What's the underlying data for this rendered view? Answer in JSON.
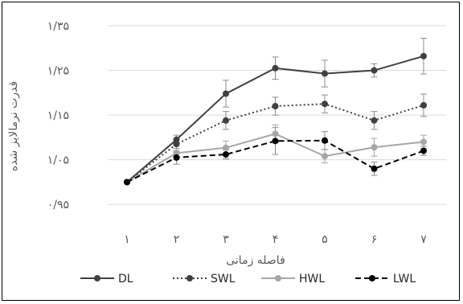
{
  "chart_data": {
    "type": "line",
    "title": "",
    "xlabel": "فاصله زمانی",
    "ylabel": "قدرت نرمالایز شده",
    "categories": [
      "۱",
      "۲",
      "۳",
      "۴",
      "۵",
      "۶",
      "۷"
    ],
    "x": [
      1,
      2,
      3,
      4,
      5,
      6,
      7
    ],
    "ylim": [
      0.9,
      1.35
    ],
    "yticks": [
      0.95,
      1.05,
      1.15,
      1.25,
      1.35
    ],
    "ytick_labels": [
      "۰/۹۵",
      "۱/۰۵",
      "۱/۱۵",
      "۱/۲۵",
      "۱/۳۵"
    ],
    "grid": true,
    "legend": "bottom",
    "series": [
      {
        "name": "DL",
        "color": "#404040",
        "dash": "solid",
        "values": [
          1.0,
          1.095,
          1.198,
          1.255,
          1.243,
          1.25,
          1.282
        ],
        "errors": [
          0,
          0.01,
          0.03,
          0.025,
          0.03,
          0.015,
          0.04
        ]
      },
      {
        "name": "SWL",
        "color": "#404040",
        "dash": "dotted",
        "values": [
          1.0,
          1.085,
          1.138,
          1.17,
          1.175,
          1.138,
          1.172
        ],
        "errors": [
          0,
          0.01,
          0.02,
          0.02,
          0.02,
          0.02,
          0.025
        ]
      },
      {
        "name": "HWL",
        "color": "#a6a6a6",
        "dash": "solid",
        "values": [
          1.0,
          1.065,
          1.077,
          1.108,
          1.058,
          1.078,
          1.09
        ],
        "errors": [
          0,
          0.01,
          0.015,
          0.02,
          0.015,
          0.02,
          0.015
        ]
      },
      {
        "name": "LWL",
        "color": "#000000",
        "dash": "dashed",
        "values": [
          1.0,
          1.055,
          1.062,
          1.092,
          1.093,
          1.03,
          1.07
        ],
        "errors": [
          0,
          0.015,
          0.01,
          0.03,
          0.02,
          0.015,
          0.01
        ]
      }
    ]
  }
}
